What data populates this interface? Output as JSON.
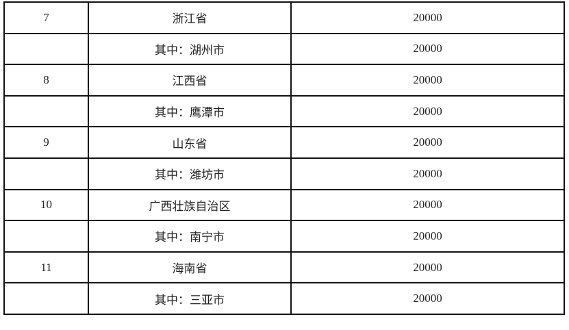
{
  "table": {
    "rows": [
      {
        "no": "7",
        "region": "浙江省",
        "amount": "20000"
      },
      {
        "no": "",
        "region": "其中：湖州市",
        "amount": "20000"
      },
      {
        "no": "8",
        "region": "江西省",
        "amount": "20000"
      },
      {
        "no": "",
        "region": "其中：鹰潭市",
        "amount": "20000"
      },
      {
        "no": "9",
        "region": "山东省",
        "amount": "20000"
      },
      {
        "no": "",
        "region": "其中：潍坊市",
        "amount": "20000"
      },
      {
        "no": "10",
        "region": "广西壮族自治区",
        "amount": "20000"
      },
      {
        "no": "",
        "region": "其中：南宁市",
        "amount": "20000"
      },
      {
        "no": "11",
        "region": "海南省",
        "amount": "20000"
      },
      {
        "no": "",
        "region": "其中：三亚市",
        "amount": "20000"
      }
    ]
  }
}
